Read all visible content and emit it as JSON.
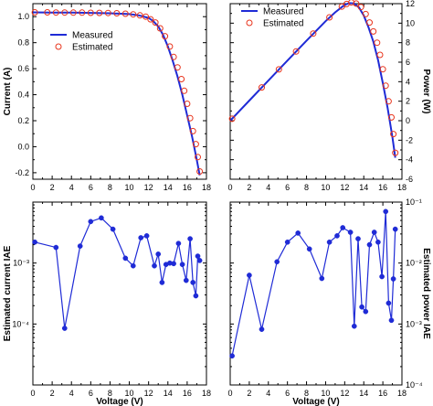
{
  "colors": {
    "measured": "#1f2bd6",
    "estimated": "#e8341c",
    "iae": "#1f2bd6",
    "axis": "#000000"
  },
  "chart_data": [
    {
      "id": "current",
      "type": "line",
      "xlabel": "",
      "ylabel": "Current (A)",
      "xlim": [
        0,
        18
      ],
      "ylim": [
        -0.25,
        1.1
      ],
      "xticks": [
        0,
        2,
        4,
        6,
        8,
        10,
        12,
        14,
        16,
        18
      ],
      "yticks": [
        -0.2,
        0.0,
        0.2,
        0.4,
        0.6,
        0.8,
        1.0
      ],
      "ytick_labels": [
        "-0.2",
        "0.0",
        "0.2",
        "0.4",
        "0.6",
        "0.8",
        "1.0"
      ],
      "y_axis_side": "left",
      "legend": {
        "position": "upper-left",
        "entries": [
          "Measured",
          "Estimated"
        ]
      },
      "series": [
        {
          "name": "Measured",
          "style": "line",
          "x": [
            0,
            2,
            4,
            6,
            8,
            10,
            11,
            12,
            12.5,
            13,
            13.5,
            14,
            14.5,
            15,
            15.5,
            16,
            16.5,
            17,
            17.3
          ],
          "y": [
            1.033,
            1.032,
            1.031,
            1.029,
            1.026,
            1.02,
            1.01,
            0.99,
            0.965,
            0.925,
            0.86,
            0.77,
            0.66,
            0.54,
            0.4,
            0.24,
            0.08,
            -0.1,
            -0.22
          ]
        },
        {
          "name": "Estimated",
          "style": "markers",
          "x": [
            0.2,
            1.5,
            2.4,
            3.3,
            4.2,
            5.1,
            6.0,
            6.9,
            7.8,
            8.7,
            9.6,
            10.4,
            11.1,
            11.7,
            12.2,
            12.7,
            13.2,
            13.7,
            14.2,
            14.6,
            15.0,
            15.4,
            15.7,
            16.0,
            16.3,
            16.6,
            16.9,
            17.1,
            17.3
          ],
          "y": [
            1.033,
            1.033,
            1.032,
            1.032,
            1.031,
            1.031,
            1.03,
            1.029,
            1.028,
            1.026,
            1.023,
            1.018,
            1.01,
            1.0,
            0.98,
            0.955,
            0.91,
            0.85,
            0.77,
            0.69,
            0.61,
            0.52,
            0.43,
            0.33,
            0.22,
            0.12,
            0.02,
            -0.08,
            -0.19
          ]
        }
      ]
    },
    {
      "id": "power",
      "type": "line",
      "xlabel": "",
      "ylabel": "Power (W)",
      "xlim": [
        0,
        18
      ],
      "ylim": [
        -6,
        12
      ],
      "xticks": [
        0,
        2,
        4,
        6,
        8,
        10,
        12,
        14,
        16,
        18
      ],
      "yticks": [
        -6,
        -4,
        -2,
        0,
        2,
        4,
        6,
        8,
        10,
        12
      ],
      "ytick_labels": [
        "-6",
        "-4",
        "-2",
        "0",
        "2",
        "4",
        "6",
        "8",
        "10",
        "12"
      ],
      "y_axis_side": "right",
      "legend": {
        "position": "upper-left",
        "entries": [
          "Measured",
          "Estimated"
        ]
      },
      "series": [
        {
          "name": "Measured",
          "style": "line",
          "x": [
            0,
            2,
            4,
            6,
            8,
            10,
            11,
            12,
            12.5,
            13,
            13.5,
            14,
            14.5,
            15,
            15.5,
            16,
            16.5,
            17,
            17.3
          ],
          "y": [
            0,
            2.06,
            4.12,
            6.17,
            8.21,
            10.2,
            11.11,
            11.88,
            12.06,
            12.03,
            11.61,
            10.78,
            9.57,
            8.1,
            6.2,
            3.84,
            1.32,
            -1.7,
            -3.8
          ]
        },
        {
          "name": "Estimated",
          "style": "markers",
          "x": [
            0.2,
            3.3,
            5.1,
            6.9,
            8.7,
            10.4,
            11.7,
            12.2,
            12.7,
            13.2,
            13.7,
            14.2,
            14.6,
            15.0,
            15.4,
            15.7,
            16.0,
            16.3,
            16.6,
            16.9,
            17.1,
            17.3
          ],
          "y": [
            0.2,
            3.41,
            5.26,
            7.1,
            8.93,
            10.59,
            11.7,
            11.96,
            12.13,
            12.01,
            11.65,
            10.93,
            10.07,
            9.15,
            8.0,
            6.75,
            5.28,
            3.59,
            1.99,
            0.34,
            -1.37,
            -3.29
          ]
        }
      ]
    },
    {
      "id": "current_iae",
      "type": "line",
      "xlabel": "Voltage (V)",
      "ylabel": "Estimated current IAE",
      "xlim": [
        0,
        18
      ],
      "ylim": [
        1e-05,
        0.01
      ],
      "yscale": "log",
      "xticks": [
        0,
        2,
        4,
        6,
        8,
        10,
        12,
        14,
        16,
        18
      ],
      "ytick_values": [
        0.0001,
        0.001
      ],
      "ytick_labels": [
        "10⁻⁴",
        "10⁻³"
      ],
      "y_axis_side": "left",
      "series": [
        {
          "name": "",
          "style": "line+markers",
          "x": [
            0.2,
            2.4,
            3.3,
            4.9,
            6.0,
            7.1,
            8.3,
            9.6,
            10.4,
            11.2,
            11.8,
            12.6,
            13.0,
            13.4,
            13.8,
            14.2,
            14.6,
            15.1,
            15.5,
            15.9,
            16.3,
            16.6,
            16.9,
            17.1,
            17.3
          ],
          "y": [
            0.0022,
            0.0018,
            8.5e-05,
            0.0019,
            0.0048,
            0.0055,
            0.0036,
            0.0012,
            0.0009,
            0.0026,
            0.0028,
            0.0009,
            0.0014,
            0.00048,
            0.00095,
            0.001,
            0.00098,
            0.0021,
            0.00095,
            0.00052,
            0.0025,
            0.00048,
            0.00029,
            0.0013,
            0.0011
          ]
        }
      ]
    },
    {
      "id": "power_iae",
      "type": "line",
      "xlabel": "Voltage (V)",
      "ylabel": "Estimated power IAE",
      "xlim": [
        0,
        18
      ],
      "ylim": [
        0.0001,
        0.1
      ],
      "yscale": "log",
      "xticks": [
        0,
        2,
        4,
        6,
        8,
        10,
        12,
        14,
        16,
        18
      ],
      "ytick_values": [
        0.0001,
        0.001,
        0.01,
        0.1
      ],
      "ytick_labels": [
        "10⁻⁴",
        "10⁻³",
        "10⁻²",
        "10⁻¹"
      ],
      "y_axis_side": "right",
      "series": [
        {
          "name": "",
          "style": "line+markers",
          "x": [
            0.2,
            2.0,
            3.3,
            4.9,
            6.0,
            7.1,
            8.3,
            9.6,
            10.4,
            11.2,
            11.8,
            12.6,
            13.0,
            13.4,
            13.8,
            14.2,
            14.6,
            15.1,
            15.5,
            15.9,
            16.3,
            16.6,
            16.9,
            17.1,
            17.3
          ],
          "y": [
            0.0003,
            0.0063,
            0.00082,
            0.0105,
            0.022,
            0.031,
            0.017,
            0.0056,
            0.022,
            0.028,
            0.038,
            0.032,
            0.00092,
            0.025,
            0.0019,
            0.0016,
            0.02,
            0.032,
            0.022,
            0.006,
            0.07,
            0.0022,
            0.00115,
            0.0055,
            0.036
          ]
        }
      ]
    }
  ]
}
